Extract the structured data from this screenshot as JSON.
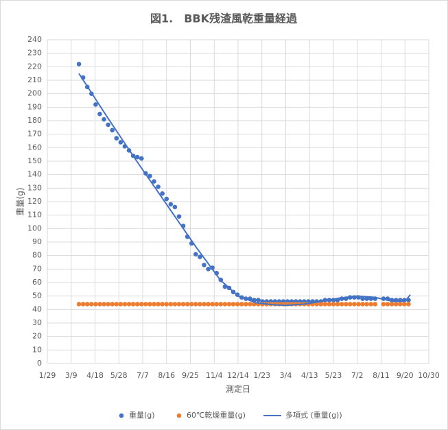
{
  "chart_data": {
    "type": "scatter",
    "title": "図1.　BBK残渣風乾重量経過",
    "x_label": "測定日",
    "y_label": "重量(g)",
    "xlim": [
      0,
      640
    ],
    "xticks": [
      {
        "value": 0,
        "label": "1/29"
      },
      {
        "value": 40,
        "label": "3/9"
      },
      {
        "value": 80,
        "label": "4/18"
      },
      {
        "value": 120,
        "label": "5/28"
      },
      {
        "value": 160,
        "label": "7/7"
      },
      {
        "value": 200,
        "label": "8/16"
      },
      {
        "value": 240,
        "label": "9/25"
      },
      {
        "value": 280,
        "label": "11/4"
      },
      {
        "value": 320,
        "label": "12/14"
      },
      {
        "value": 360,
        "label": "1/23"
      },
      {
        "value": 400,
        "label": "3/4"
      },
      {
        "value": 440,
        "label": "4/13"
      },
      {
        "value": 480,
        "label": "5/23"
      },
      {
        "value": 520,
        "label": "7/2"
      },
      {
        "value": 560,
        "label": "8/11"
      },
      {
        "value": 600,
        "label": "9/20"
      },
      {
        "value": 640,
        "label": "10/30"
      }
    ],
    "ylim": [
      0,
      240
    ],
    "yticks": [
      0,
      10,
      20,
      30,
      40,
      50,
      60,
      70,
      80,
      90,
      100,
      110,
      120,
      130,
      140,
      150,
      160,
      170,
      180,
      190,
      200,
      210,
      220,
      230,
      240
    ],
    "grid": true,
    "legend": "bottom",
    "series": [
      {
        "name": "重量(g)",
        "color": "#4472c4",
        "type": "scatter",
        "x": [
          53,
          60,
          67,
          74,
          81,
          88,
          95,
          102,
          109,
          116,
          123,
          130,
          137,
          144,
          151,
          158,
          165,
          172,
          179,
          186,
          193,
          200,
          207,
          214,
          221,
          228,
          235,
          242,
          249,
          256,
          263,
          270,
          277,
          284,
          291,
          298,
          305,
          312,
          319,
          326,
          333,
          340,
          347,
          354,
          361,
          368,
          375,
          382,
          389,
          396,
          403,
          410,
          417,
          424,
          431,
          438,
          445,
          452,
          459,
          466,
          473,
          480,
          487,
          494,
          501,
          508,
          515,
          522,
          529,
          536,
          543,
          550,
          564,
          571,
          578,
          585,
          592,
          599,
          606
        ],
        "values": [
          222,
          212,
          205,
          200,
          192,
          185,
          181,
          177,
          173,
          167,
          164,
          161,
          158,
          154,
          153,
          152,
          141,
          139,
          135,
          131,
          126,
          122,
          118,
          116,
          109,
          102,
          94,
          89,
          81,
          79,
          73,
          70,
          71,
          67,
          62,
          57,
          56,
          53,
          51,
          49,
          48,
          48,
          47,
          47,
          46,
          46,
          46,
          46,
          46,
          46,
          46,
          46,
          46,
          46,
          46,
          46,
          46,
          46,
          46,
          47,
          47,
          47,
          47,
          48,
          48,
          49,
          49,
          49,
          48,
          48,
          48,
          48,
          48,
          48,
          47,
          47,
          47,
          47,
          47
        ]
      },
      {
        "name": "60℃乾燥重量(g)",
        "color": "#ed7d31",
        "type": "scatter",
        "x": [
          53,
          60,
          67,
          74,
          81,
          88,
          95,
          102,
          109,
          116,
          123,
          130,
          137,
          144,
          151,
          158,
          165,
          172,
          179,
          186,
          193,
          200,
          207,
          214,
          221,
          228,
          235,
          242,
          249,
          256,
          263,
          270,
          277,
          284,
          291,
          298,
          305,
          312,
          319,
          326,
          333,
          340,
          347,
          354,
          361,
          368,
          375,
          382,
          389,
          396,
          403,
          410,
          417,
          424,
          431,
          438,
          445,
          452,
          459,
          466,
          473,
          480,
          487,
          494,
          501,
          508,
          515,
          522,
          529,
          536,
          543,
          550,
          564,
          571,
          578,
          585,
          592,
          599,
          606
        ],
        "values": [
          44,
          44,
          44,
          44,
          44,
          44,
          44,
          44,
          44,
          44,
          44,
          44,
          44,
          44,
          44,
          44,
          44,
          44,
          44,
          44,
          44,
          44,
          44,
          44,
          44,
          44,
          44,
          44,
          44,
          44,
          44,
          44,
          44,
          44,
          44,
          44,
          44,
          44,
          44,
          44,
          44,
          44,
          44,
          44,
          44,
          44,
          44,
          44,
          44,
          44,
          44,
          44,
          44,
          44,
          44,
          44,
          44,
          44,
          44,
          44,
          44,
          44,
          44,
          44,
          44,
          44,
          44,
          44,
          44,
          44,
          44,
          44,
          44,
          44,
          44,
          44,
          44,
          44,
          44
        ]
      },
      {
        "name": "多項式 (重量(g))",
        "color": "#4472c4",
        "type": "line",
        "x": [
          53,
          100,
          150,
          200,
          250,
          290,
          320,
          350,
          380,
          400,
          430,
          460,
          490,
          520,
          550,
          580,
          600,
          609
        ],
        "values": [
          215,
          183,
          150,
          118,
          86,
          62,
          50,
          45,
          43.5,
          43,
          44,
          46,
          48.5,
          50,
          49,
          46,
          46,
          51
        ]
      }
    ]
  }
}
